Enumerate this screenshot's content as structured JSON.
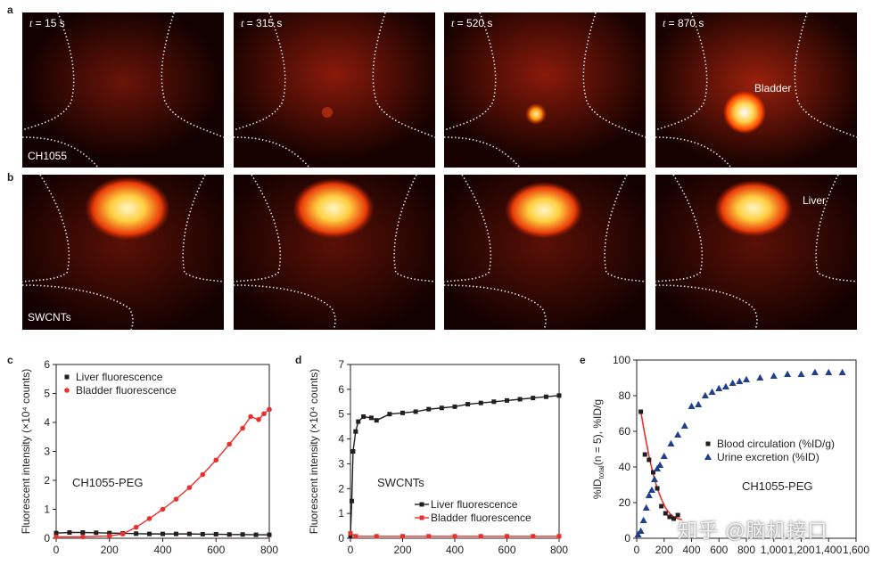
{
  "panels": {
    "a": {
      "letter": "a",
      "label": "CH1055",
      "marker": "Bladder",
      "frames": [
        {
          "t_var": "t",
          "t_rest": " = 15 s"
        },
        {
          "t_var": "t",
          "t_rest": " = 315 s"
        },
        {
          "t_var": "t",
          "t_rest": " = 520 s"
        },
        {
          "t_var": "t",
          "t_rest": " = 870 s"
        }
      ]
    },
    "b": {
      "letter": "b",
      "label": "SWCNTs",
      "marker": "Liver"
    }
  },
  "chart_data": [
    {
      "panel": "c",
      "type": "scatter",
      "ylabel": "Fluorescent intensity (×10⁴ counts)",
      "xlabel": "",
      "annotation": "CH1055-PEG",
      "xlim": [
        0,
        800
      ],
      "ylim": [
        0,
        6
      ],
      "xticks": [
        "0",
        "200",
        "400",
        "600",
        "800"
      ],
      "yticks": [
        "0",
        "1",
        "2",
        "3",
        "4",
        "5",
        "6"
      ],
      "legend_position": "top-left",
      "series": [
        {
          "name": "Liver fluorescence",
          "color": "#231f20",
          "marker": "square",
          "points": [
            [
              0,
              0.18
            ],
            [
              50,
              0.2
            ],
            [
              100,
              0.2
            ],
            [
              150,
              0.19
            ],
            [
              200,
              0.18
            ],
            [
              250,
              0.17
            ],
            [
              300,
              0.16
            ],
            [
              350,
              0.15
            ],
            [
              400,
              0.15
            ],
            [
              450,
              0.15
            ],
            [
              500,
              0.15
            ],
            [
              550,
              0.14
            ],
            [
              600,
              0.14
            ],
            [
              650,
              0.13
            ],
            [
              700,
              0.13
            ],
            [
              750,
              0.12
            ],
            [
              800,
              0.12
            ]
          ]
        },
        {
          "name": "Bladder fluorescence",
          "color": "#e8302c",
          "marker": "circle",
          "points": [
            [
              0,
              0.05
            ],
            [
              100,
              0.05
            ],
            [
              200,
              0.08
            ],
            [
              250,
              0.15
            ],
            [
              300,
              0.38
            ],
            [
              350,
              0.68
            ],
            [
              400,
              1.0
            ],
            [
              450,
              1.35
            ],
            [
              500,
              1.75
            ],
            [
              550,
              2.2
            ],
            [
              600,
              2.7
            ],
            [
              650,
              3.25
            ],
            [
              700,
              3.8
            ],
            [
              730,
              4.2
            ],
            [
              760,
              4.1
            ],
            [
              780,
              4.3
            ],
            [
              800,
              4.45
            ]
          ]
        }
      ]
    },
    {
      "panel": "d",
      "type": "scatter",
      "ylabel": "Fluorescent intensity (×10⁴ counts)",
      "xlabel": "",
      "annotation": "SWCNTs",
      "xlim": [
        0,
        800
      ],
      "ylim": [
        0,
        7
      ],
      "xticks": [
        "0",
        "200",
        "400",
        "600",
        "800"
      ],
      "yticks": [
        "0",
        "1",
        "2",
        "3",
        "4",
        "5",
        "6",
        "7"
      ],
      "legend_position": "bottom-right",
      "series": [
        {
          "name": "Liver fluorescence",
          "color": "#231f20",
          "marker": "square",
          "points": [
            [
              0,
              0.1
            ],
            [
              5,
              1.5
            ],
            [
              10,
              3.5
            ],
            [
              20,
              4.3
            ],
            [
              30,
              4.7
            ],
            [
              50,
              4.9
            ],
            [
              80,
              4.85
            ],
            [
              100,
              4.75
            ],
            [
              150,
              5.0
            ],
            [
              200,
              5.05
            ],
            [
              250,
              5.1
            ],
            [
              300,
              5.2
            ],
            [
              350,
              5.25
            ],
            [
              400,
              5.3
            ],
            [
              450,
              5.4
            ],
            [
              500,
              5.45
            ],
            [
              550,
              5.5
            ],
            [
              600,
              5.55
            ],
            [
              650,
              5.6
            ],
            [
              700,
              5.65
            ],
            [
              750,
              5.7
            ],
            [
              800,
              5.75
            ]
          ]
        },
        {
          "name": "Bladder fluorescence",
          "color": "#e8302c",
          "marker": "square",
          "points": [
            [
              0,
              0.2
            ],
            [
              20,
              0.08
            ],
            [
              100,
              0.08
            ],
            [
              200,
              0.08
            ],
            [
              300,
              0.08
            ],
            [
              400,
              0.08
            ],
            [
              500,
              0.08
            ],
            [
              600,
              0.08
            ],
            [
              700,
              0.08
            ],
            [
              800,
              0.08
            ]
          ]
        }
      ]
    },
    {
      "panel": "e",
      "type": "scatter",
      "ylabel": "%ID",
      "ylabel_sub": "total",
      "ylabel_rest": "(n = 5), %ID/g",
      "xlabel": "",
      "annotation": "CH1055-PEG",
      "xlim": [
        0,
        1600
      ],
      "ylim": [
        0,
        100
      ],
      "xticks": [
        "0",
        "200",
        "400",
        "600",
        "800",
        "1,000",
        "1,200",
        "1,400",
        "1,600"
      ],
      "yticks": [
        "0",
        "20",
        "40",
        "60",
        "80",
        "100"
      ],
      "legend_position": "center-right",
      "series": [
        {
          "name": "Blood circulation (%ID/g)",
          "color": "#231f20",
          "marker": "square",
          "points": [
            [
              30,
              71
            ],
            [
              60,
              47
            ],
            [
              90,
              44
            ],
            [
              120,
              37
            ],
            [
              150,
              28
            ],
            [
              180,
              18
            ],
            [
              210,
              14
            ],
            [
              240,
              12
            ],
            [
              270,
              11
            ],
            [
              300,
              13
            ]
          ]
        },
        {
          "name": "Urine excretion (%ID)",
          "color": "#1f3f8f",
          "marker": "triangle",
          "points": [
            [
              10,
              2
            ],
            [
              30,
              4
            ],
            [
              50,
              10
            ],
            [
              70,
              17
            ],
            [
              90,
              24
            ],
            [
              110,
              27
            ],
            [
              130,
              33
            ],
            [
              150,
              39
            ],
            [
              170,
              41
            ],
            [
              200,
              46
            ],
            [
              250,
              53
            ],
            [
              300,
              58
            ],
            [
              350,
              63
            ],
            [
              400,
              74
            ],
            [
              450,
              75
            ],
            [
              500,
              80
            ],
            [
              550,
              82
            ],
            [
              600,
              84
            ],
            [
              650,
              85
            ],
            [
              700,
              87
            ],
            [
              750,
              88
            ],
            [
              800,
              89
            ],
            [
              900,
              90
            ],
            [
              1000,
              91
            ],
            [
              1100,
              92
            ],
            [
              1200,
              92
            ],
            [
              1300,
              93
            ],
            [
              1400,
              93
            ],
            [
              1500,
              93
            ]
          ]
        }
      ],
      "fit_line": {
        "color": "#e8302c",
        "points": [
          [
            30,
            71
          ],
          [
            60,
            58
          ],
          [
            90,
            46
          ],
          [
            120,
            36
          ],
          [
            150,
            28
          ],
          [
            180,
            22
          ],
          [
            210,
            17
          ],
          [
            240,
            14
          ],
          [
            270,
            12
          ],
          [
            300,
            11
          ],
          [
            330,
            10.5
          ]
        ]
      }
    }
  ],
  "watermark": "知乎 @脑机接口"
}
